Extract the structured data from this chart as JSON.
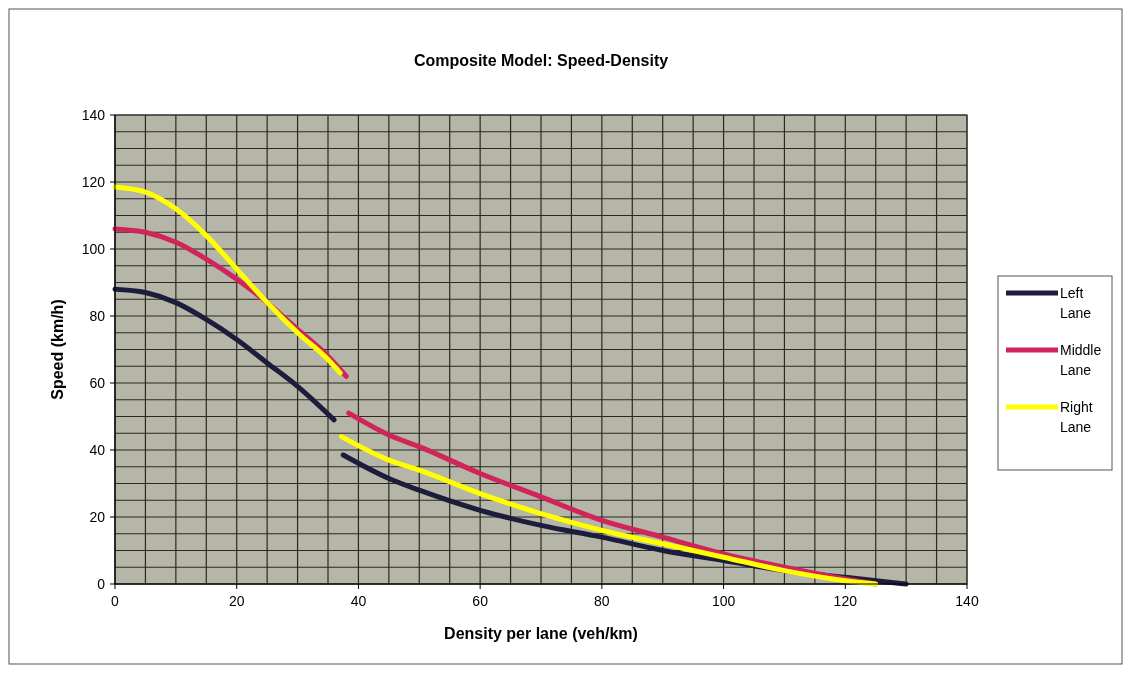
{
  "chart_data": {
    "type": "line",
    "title": "Composite Model: Speed-Density",
    "xlabel": "Density per lane (veh/km)",
    "ylabel": "Speed (km/h)",
    "xlim": [
      0,
      140
    ],
    "ylim": [
      0,
      140
    ],
    "xticks": [
      0,
      {
        "value": 5,
        "label": null
      },
      {
        "value": 10,
        "label": null
      },
      {
        "value": 15,
        "label": null
      },
      20,
      {
        "value": 25,
        "label": null
      },
      {
        "value": 30,
        "label": null
      },
      {
        "value": 35,
        "label": null
      },
      40,
      {
        "value": 45,
        "label": null
      },
      {
        "value": 50,
        "label": null
      },
      {
        "value": 55,
        "label": null
      },
      60,
      {
        "value": 65,
        "label": null
      },
      {
        "value": 70,
        "label": null
      },
      {
        "value": 75,
        "label": null
      },
      80,
      {
        "value": 85,
        "label": null
      },
      {
        "value": 90,
        "label": null
      },
      {
        "value": 95,
        "label": null
      },
      100,
      {
        "value": 105,
        "label": null
      },
      {
        "value": 110,
        "label": null
      },
      {
        "value": 115,
        "label": null
      },
      120,
      {
        "value": 125,
        "label": null
      },
      {
        "value": 130,
        "label": null
      },
      {
        "value": 135,
        "label": null
      },
      140
    ],
    "yticks": [
      0,
      {
        "value": 5,
        "label": null
      },
      {
        "value": 10,
        "label": null
      },
      {
        "value": 15,
        "label": null
      },
      20,
      {
        "value": 25,
        "label": null
      },
      {
        "value": 30,
        "label": null
      },
      {
        "value": 35,
        "label": null
      },
      40,
      {
        "value": 45,
        "label": null
      },
      {
        "value": 50,
        "label": null
      },
      {
        "value": 55,
        "label": null
      },
      60,
      {
        "value": 65,
        "label": null
      },
      {
        "value": 70,
        "label": null
      },
      {
        "value": 75,
        "label": null
      },
      80,
      {
        "value": 85,
        "label": null
      },
      {
        "value": 90,
        "label": null
      },
      {
        "value": 95,
        "label": null
      },
      100,
      {
        "value": 105,
        "label": null
      },
      {
        "value": 110,
        "label": null
      },
      {
        "value": 115,
        "label": null
      },
      120,
      {
        "value": 125,
        "label": null
      },
      {
        "value": 130,
        "label": null
      },
      {
        "value": 135,
        "label": null
      },
      140
    ],
    "grid": true,
    "legend": "right",
    "marker": "none",
    "line_style": "solid",
    "series": [
      {
        "name": "Left Lane",
        "color": "#1c1c3c",
        "x": [
          0,
          5,
          10,
          15,
          20,
          25,
          30,
          36,
          37,
          37.5,
          45,
          50,
          60,
          70,
          80,
          90,
          100,
          110,
          120,
          130
        ],
        "values": [
          88,
          87,
          84,
          79,
          73,
          66,
          59,
          49,
          null,
          38.5,
          31.5,
          28,
          22,
          17.5,
          14,
          10,
          7,
          4,
          2,
          0
        ]
      },
      {
        "name": "Middle Lane",
        "color": "#d0245a",
        "x": [
          0,
          5,
          10,
          15,
          20,
          25,
          30,
          35,
          38,
          38.2,
          38.4,
          45,
          50,
          60,
          70,
          80,
          90,
          100,
          110,
          120,
          125
        ],
        "values": [
          106,
          105,
          102,
          97,
          91,
          84,
          76,
          68,
          62,
          null,
          51,
          44.5,
          41,
          33,
          26,
          19,
          14,
          9,
          5,
          1.5,
          0
        ]
      },
      {
        "name": "Right Lane",
        "color": "#ffff00",
        "x": [
          0,
          5,
          10,
          15,
          20,
          25,
          30,
          35,
          37,
          37.1,
          37.2,
          45,
          50,
          60,
          70,
          80,
          90,
          100,
          110,
          120,
          125
        ],
        "values": [
          118.5,
          117,
          112,
          104,
          94,
          84,
          75,
          67,
          63,
          null,
          44,
          37,
          34,
          27,
          21,
          16,
          12,
          8,
          4,
          1,
          0
        ]
      }
    ]
  }
}
